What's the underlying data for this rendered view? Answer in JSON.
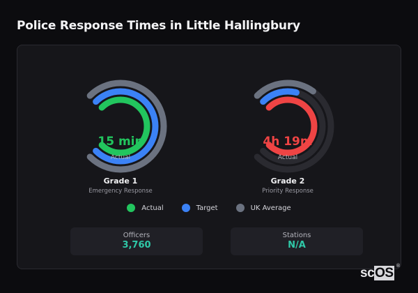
{
  "page": {
    "title": "Police Response Times in Little Hallingbury"
  },
  "gauges": [
    {
      "name": "Grade 1",
      "description": "Emergency Response",
      "value_label": "15 min",
      "value_sublabel": "Actual",
      "actual_color": "#22c55e"
    },
    {
      "name": "Grade 2",
      "description": "Priority Response",
      "value_label": "4h 19m",
      "value_sublabel": "Actual",
      "actual_color": "#ef4444"
    }
  ],
  "legend": [
    {
      "label": "Actual",
      "color": "#22c55e"
    },
    {
      "label": "Target",
      "color": "#3b82f6"
    },
    {
      "label": "UK Average",
      "color": "#6b7280"
    }
  ],
  "stats": [
    {
      "label": "Officers",
      "value": "3,760"
    },
    {
      "label": "Stations",
      "value": "N/A"
    }
  ],
  "logo": {
    "text_a": "sc",
    "text_b": "OS",
    "reg": "®"
  },
  "colors": {
    "track": "#2a2a30",
    "actual_good": "#22c55e",
    "actual_bad": "#ef4444",
    "target": "#3b82f6",
    "uk_avg": "#6b7280",
    "accent": "#2fc9a8"
  },
  "chart_data": {
    "type": "radial-bar",
    "title": "Police Response Times in Little Hallingbury",
    "sweep_degrees": 270,
    "legend": [
      "Actual",
      "Target",
      "UK Average"
    ],
    "categories": [
      "Grade 1 (Emergency Response)",
      "Grade 2 (Priority Response)"
    ],
    "series": [
      {
        "name": "Actual",
        "labels": [
          "15 min",
          "4h 19m"
        ],
        "fill_fraction": [
          1.0,
          1.0
        ],
        "colors": [
          "#22c55e",
          "#ef4444"
        ]
      },
      {
        "name": "Target",
        "fill_fraction": [
          1.0,
          0.22
        ],
        "color": "#3b82f6"
      },
      {
        "name": "UK Average",
        "fill_fraction": [
          1.0,
          0.3
        ],
        "color": "#6b7280"
      }
    ]
  }
}
